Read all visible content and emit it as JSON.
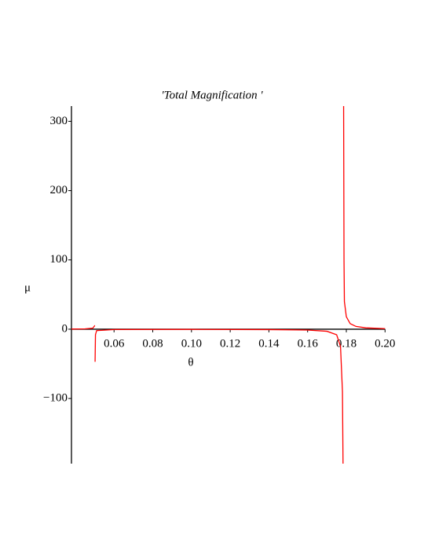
{
  "chart_data": {
    "type": "line",
    "title": "'Total Magnification '",
    "x_label": "θ",
    "y_label": "μ",
    "x": [
      0.038,
      0.045,
      0.049,
      0.05,
      0.0502,
      0.0502,
      0.0502,
      0.0504,
      0.051,
      0.06,
      0.1,
      0.14,
      0.16,
      0.17,
      0.175,
      0.177,
      0.178,
      0.1783,
      0.1785,
      0.1786,
      0.1788,
      0.179,
      0.18,
      0.182,
      0.185,
      0.19,
      0.2
    ],
    "series": [
      {
        "name": "μ",
        "color": "#ff0000",
        "values": [
          0.3,
          0.5,
          1.5,
          5,
          5,
          null,
          -47,
          -8,
          -2,
          -0.5,
          -0.3,
          -0.6,
          -1.2,
          -3,
          -8,
          -25,
          -90,
          -194,
          null,
          322,
          100,
          40,
          18,
          8,
          4,
          2,
          0.8
        ]
      }
    ],
    "xlim": [
      0.038,
      0.2
    ],
    "ylim": [
      -194,
      322
    ],
    "xticks": [
      0.06,
      0.08,
      {
        "value": 0.1,
        "label": "0.10"
      },
      0.12,
      0.14,
      0.16,
      0.18,
      {
        "value": 0.2,
        "label": "0.20"
      }
    ],
    "yticks": [
      {
        "value": -100,
        "label": "−100"
      },
      0,
      100,
      200,
      300
    ]
  }
}
